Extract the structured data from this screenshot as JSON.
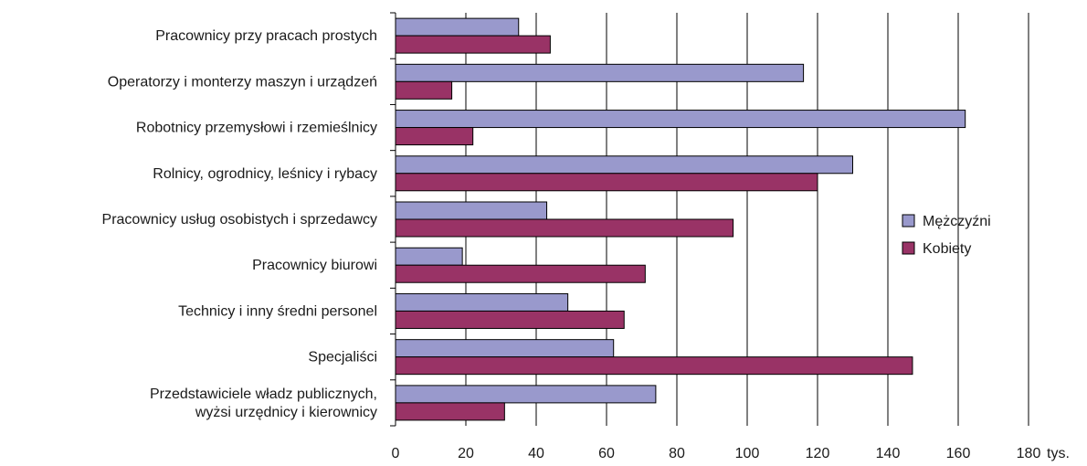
{
  "chart_data": {
    "type": "bar",
    "orientation": "horizontal",
    "categories": [
      "Pracownicy przy pracach prostych",
      "Operatorzy i monterzy maszyn i urządzeń",
      "Robotnicy przemysłowi i rzemieślnicy",
      "Rolnicy, ogrodnicy, leśnicy i rybacy",
      "Pracownicy usług osobistych i sprzedawcy",
      "Pracownicy biurowi",
      "Technicy i inny średni personel",
      "Specjaliści",
      "Przedstawiciele władz publicznych, wyżsi urzędnicy i kierownicy"
    ],
    "category_lines": [
      [
        "Pracownicy przy pracach prostych"
      ],
      [
        "Operatorzy i monterzy maszyn i urządzeń"
      ],
      [
        "Robotnicy przemysłowi i rzemieślnicy"
      ],
      [
        "Rolnicy, ogrodnicy, leśnicy i rybacy"
      ],
      [
        "Pracownicy usług osobistych i sprzedawcy"
      ],
      [
        "Pracownicy biurowi"
      ],
      [
        "Technicy i inny średni personel"
      ],
      [
        "Specjaliści"
      ],
      [
        "Przedstawiciele władz publicznych,",
        "wyżsi urzędnicy i kierownicy"
      ]
    ],
    "series": [
      {
        "name": "Mężczyźni",
        "color": "#9999cc",
        "values": [
          35,
          116,
          162,
          130,
          43,
          19,
          49,
          62,
          74
        ]
      },
      {
        "name": "Kobiety",
        "color": "#993366",
        "values": [
          44,
          16,
          22,
          120,
          96,
          71,
          65,
          147,
          31
        ]
      }
    ],
    "xlim": [
      0,
      180
    ],
    "xticks": [
      0,
      20,
      40,
      60,
      80,
      100,
      120,
      140,
      160,
      180
    ],
    "xunit": "tys.",
    "grid": true,
    "legend_position": "right"
  }
}
